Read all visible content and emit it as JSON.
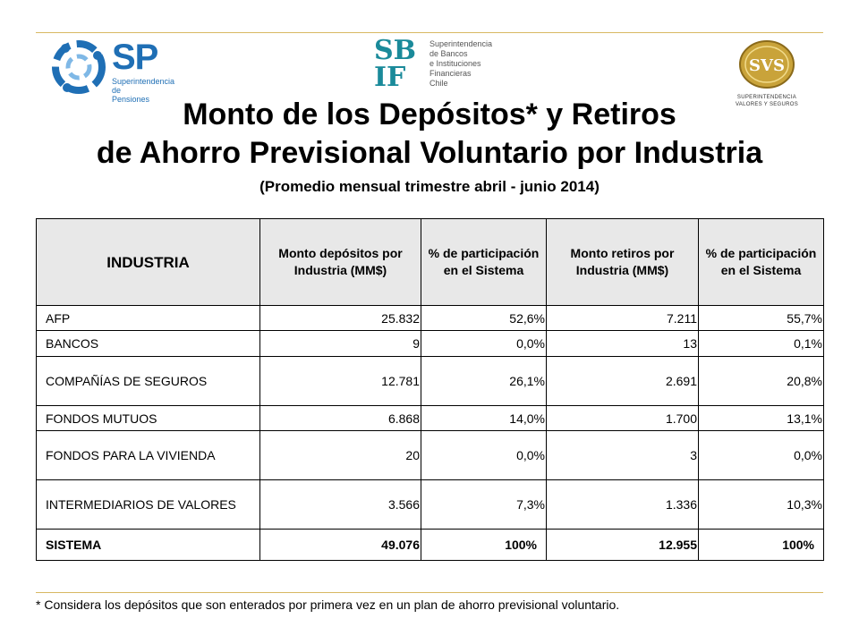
{
  "logos": {
    "sp": {
      "text": "SP",
      "sub_line1": "Superintendencia de",
      "sub_line2": "Pensiones"
    },
    "sbif": {
      "letters_top": "SB",
      "letters_bottom": "IF",
      "sub_lines": [
        "Superintendencia",
        "de Bancos",
        "e Instituciones",
        "Financieras",
        "Chile"
      ]
    },
    "svs": {
      "text": "SVS",
      "sub_line1": "SUPERINTENDENCIA",
      "sub_line2": "VALORES Y SEGUROS"
    }
  },
  "title": {
    "line1": "Monto de los Depósitos* y Retiros",
    "line2": "de Ahorro Previsional Voluntario por Industria",
    "subtitle": "(Promedio mensual trimestre abril - junio 2014)"
  },
  "table": {
    "headers": [
      "INDUSTRIA",
      "Monto depósitos por Industria (MM$)",
      "% de participación en el Sistema",
      "Monto retiros por Industria (MM$)",
      "% de participación en el Sistema"
    ],
    "rows": [
      {
        "industry": "AFP",
        "deposits": "25.832",
        "dep_pct": "52,6%",
        "withdrawals": "7.211",
        "wd_pct": "55,7%"
      },
      {
        "industry": "BANCOS",
        "deposits": "9",
        "dep_pct": "0,0%",
        "withdrawals": "13",
        "wd_pct": "0,1%"
      },
      {
        "industry": "COMPAÑÍAS DE SEGUROS",
        "deposits": "12.781",
        "dep_pct": "26,1%",
        "withdrawals": "2.691",
        "wd_pct": "20,8%"
      },
      {
        "industry": "FONDOS MUTUOS",
        "deposits": "6.868",
        "dep_pct": "14,0%",
        "withdrawals": "1.700",
        "wd_pct": "13,1%"
      },
      {
        "industry": "FONDOS PARA LA VIVIENDA",
        "deposits": "20",
        "dep_pct": "0,0%",
        "withdrawals": "3",
        "wd_pct": "0,0%"
      },
      {
        "industry": "INTERMEDIARIOS DE VALORES",
        "deposits": "3.566",
        "dep_pct": "7,3%",
        "withdrawals": "1.336",
        "wd_pct": "10,3%"
      }
    ],
    "total": {
      "industry": "SISTEMA",
      "deposits": "49.076",
      "dep_pct": "100%",
      "withdrawals": "12.955",
      "wd_pct": "100%"
    }
  },
  "footnote": "* Considera los depósitos que son enterados por primera vez en un plan de ahorro previsional voluntario.",
  "colors": {
    "rule": "#d8b862",
    "header_bg": "#e8e8e8",
    "sp_blue": "#1f6fb5",
    "sbif_teal": "#1a8a9a",
    "svs_gold": "#c9a33a"
  }
}
